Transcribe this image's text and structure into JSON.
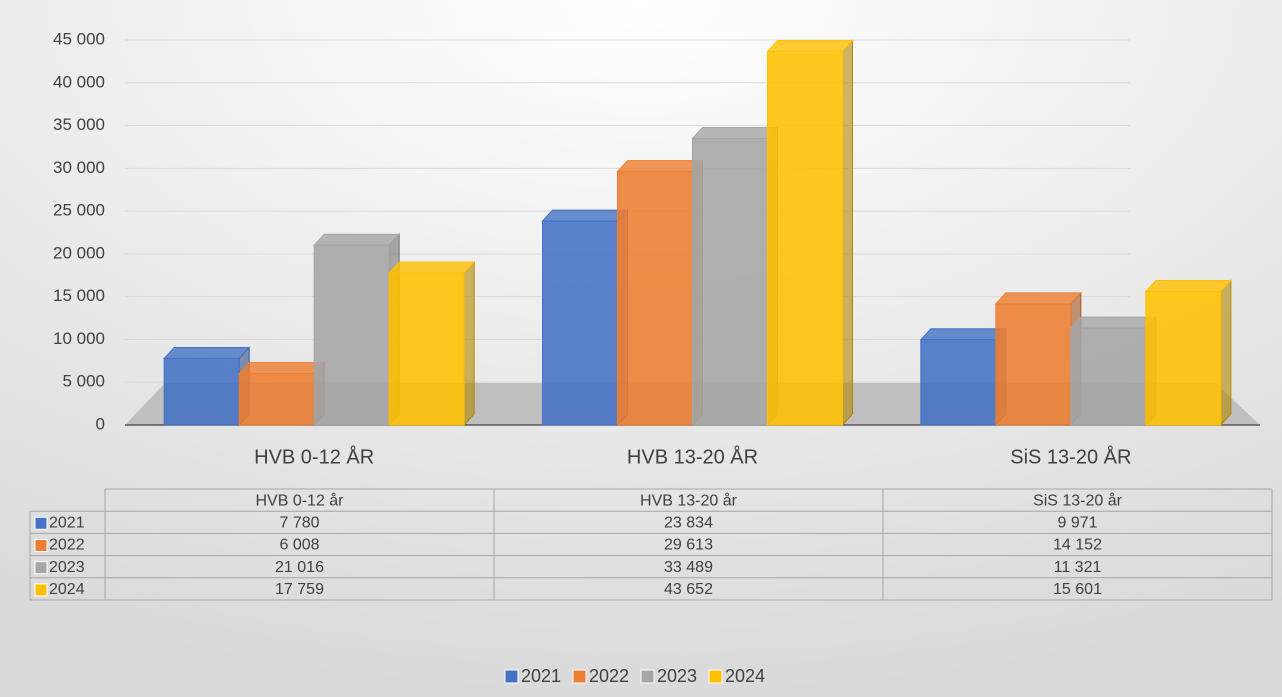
{
  "chart_data": {
    "type": "bar3d",
    "categories": [
      "HVB 0-12 ÅR",
      "HVB 13-20 ÅR",
      "SiS 13-20 ÅR"
    ],
    "table_headers": [
      "HVB 0-12 år",
      "HVB 13-20 år",
      "SiS 13-20 år"
    ],
    "series": [
      {
        "name": "2021",
        "color": "#4472c4",
        "values": [
          7780,
          23834,
          9971
        ],
        "value_labels": [
          "7 780",
          "23 834",
          "9 971"
        ]
      },
      {
        "name": "2022",
        "color": "#ed7d31",
        "values": [
          6008,
          29613,
          14152
        ],
        "value_labels": [
          "6 008",
          "29 613",
          "14 152"
        ]
      },
      {
        "name": "2023",
        "color": "#a5a5a5",
        "values": [
          21016,
          33489,
          11321
        ],
        "value_labels": [
          "21 016",
          "33 489",
          "11 321"
        ]
      },
      {
        "name": "2024",
        "color": "#ffc000",
        "values": [
          17759,
          43652,
          15601
        ],
        "value_labels": [
          "17 759",
          "43 652",
          "15 601"
        ]
      }
    ],
    "ylim": [
      0,
      45000
    ],
    "yticks": [
      0,
      {
        "value": 5000,
        "label": "5 000"
      },
      {
        "value": 10000,
        "label": "10 000"
      },
      {
        "value": 15000,
        "label": "15 000"
      },
      {
        "value": 20000,
        "label": "20 000"
      },
      {
        "value": 25000,
        "label": "25 000"
      },
      {
        "value": 30000,
        "label": "30 000"
      },
      {
        "value": 35000,
        "label": "35 000"
      },
      {
        "value": 40000,
        "label": "40 000"
      },
      {
        "value": 45000,
        "label": "45 000"
      }
    ],
    "grid": true,
    "legend": "bottom"
  }
}
